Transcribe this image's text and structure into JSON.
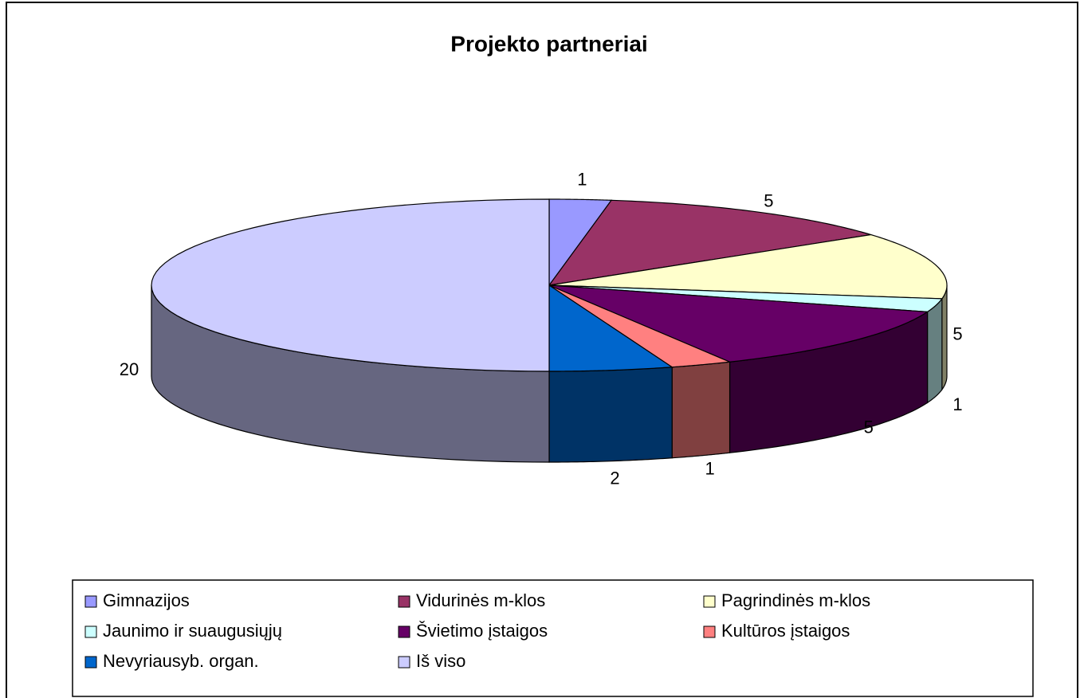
{
  "chart_data": {
    "type": "pie3d",
    "title": "Projekto partneriai",
    "categories": [
      "Gimnazijos",
      "Vidurinės m-klos",
      "Pagrindinės m-klos",
      "Jaunimo ir suaugusiųjų",
      "Švietimo įstaigos",
      "Kultūros įstaigos",
      "Nevyriausyb. organ.",
      "Iš viso"
    ],
    "values": [
      1,
      5,
      5,
      1,
      5,
      1,
      2,
      20
    ],
    "colors": [
      "#9999ff",
      "#993366",
      "#ffffcc",
      "#ccffff",
      "#660066",
      "#ff8080",
      "#0066cc",
      "#ccccff"
    ],
    "legend": "bottom"
  }
}
